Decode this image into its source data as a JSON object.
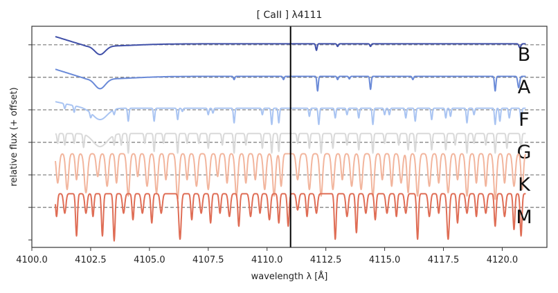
{
  "chart_data": {
    "type": "line",
    "title": "[ CaII ] λ4111",
    "xlabel": "wavelength λ [Å]",
    "ylabel": "relative flux (+ offset)",
    "xlim": [
      4100.0,
      4121.9
    ],
    "ylim": [
      -1.23,
      5.57
    ],
    "xticks": [
      "4100.0",
      "4102.5",
      "4105.0",
      "4107.5",
      "4110.0",
      "4112.5",
      "4115.0",
      "4117.5",
      "4120.0"
    ],
    "yticks": [
      -1,
      0,
      1,
      2,
      3,
      4,
      5
    ],
    "marker_line": {
      "x": 4111.0,
      "color": "#000000"
    },
    "grid": false,
    "range": [
      4101.0,
      4121.0
    ],
    "series": [
      {
        "name": "B",
        "offset": 5,
        "color": "#3f4fa8",
        "continuum": 0.03,
        "ramp": 0.25,
        "lines": [
          [
            4102.9,
            0.26,
            0.22
          ],
          [
            4102.9,
            0.07,
            1.4
          ],
          [
            4112.1,
            0.2,
            0.03
          ],
          [
            4113.0,
            0.08,
            0.03
          ],
          [
            4114.4,
            0.08,
            0.03
          ],
          [
            4120.75,
            0.12,
            0.04
          ]
        ]
      },
      {
        "name": "A",
        "offset": 4,
        "color": "#6a8ad8",
        "continuum": 0.03,
        "ramp": 0.25,
        "lines": [
          [
            4102.9,
            0.3,
            0.22
          ],
          [
            4102.9,
            0.08,
            1.4
          ],
          [
            4108.6,
            0.1,
            0.03
          ],
          [
            4110.7,
            0.1,
            0.03
          ],
          [
            4112.15,
            0.45,
            0.03
          ],
          [
            4113.0,
            0.1,
            0.03
          ],
          [
            4113.5,
            0.08,
            0.03
          ],
          [
            4114.4,
            0.4,
            0.03
          ],
          [
            4116.2,
            0.1,
            0.03
          ],
          [
            4119.7,
            0.45,
            0.03
          ],
          [
            4120.7,
            0.35,
            0.04
          ]
        ]
      },
      {
        "name": "F",
        "offset": 3,
        "color": "#a9c4f2",
        "continuum": 0.05,
        "ramp": 0.2,
        "lines": [
          [
            4102.9,
            0.35,
            0.3
          ],
          [
            4101.4,
            0.15,
            0.03
          ],
          [
            4101.8,
            0.2,
            0.03
          ],
          [
            4102.5,
            0.15,
            0.03
          ],
          [
            4103.5,
            0.15,
            0.03
          ],
          [
            4104.1,
            0.4,
            0.03
          ],
          [
            4105.2,
            0.4,
            0.03
          ],
          [
            4106.2,
            0.35,
            0.03
          ],
          [
            4106.4,
            0.1,
            0.03
          ],
          [
            4107.5,
            0.2,
            0.03
          ],
          [
            4107.7,
            0.15,
            0.03
          ],
          [
            4108.6,
            0.45,
            0.03
          ],
          [
            4109.8,
            0.2,
            0.03
          ],
          [
            4110.2,
            0.5,
            0.03
          ],
          [
            4110.5,
            0.45,
            0.03
          ],
          [
            4111.8,
            0.25,
            0.03
          ],
          [
            4112.2,
            0.5,
            0.03
          ],
          [
            4112.9,
            0.3,
            0.03
          ],
          [
            4113.4,
            0.2,
            0.03
          ],
          [
            4113.9,
            0.3,
            0.03
          ],
          [
            4114.5,
            0.5,
            0.03
          ],
          [
            4115.0,
            0.2,
            0.03
          ],
          [
            4115.2,
            0.2,
            0.03
          ],
          [
            4115.9,
            0.3,
            0.03
          ],
          [
            4116.3,
            0.4,
            0.03
          ],
          [
            4117.0,
            0.35,
            0.03
          ],
          [
            4117.6,
            0.3,
            0.03
          ],
          [
            4117.8,
            0.25,
            0.03
          ],
          [
            4118.5,
            0.45,
            0.03
          ],
          [
            4118.8,
            0.2,
            0.03
          ],
          [
            4119.7,
            0.5,
            0.03
          ],
          [
            4119.9,
            0.4,
            0.03
          ],
          [
            4120.3,
            0.3,
            0.03
          ],
          [
            4120.8,
            0.4,
            0.03
          ]
        ]
      },
      {
        "name": "G",
        "offset": 2,
        "color": "#d9d9d9",
        "continuum": 0.27,
        "ramp": 0,
        "lines": [
          [
            4102.9,
            0.4,
            0.3
          ],
          [
            4101.1,
            0.3,
            0.03
          ],
          [
            4101.4,
            0.35,
            0.03
          ],
          [
            4101.8,
            0.3,
            0.03
          ],
          [
            4102.2,
            0.4,
            0.03
          ],
          [
            4103.5,
            0.3,
            0.03
          ],
          [
            4103.8,
            0.35,
            0.03
          ],
          [
            4104.1,
            0.6,
            0.03
          ],
          [
            4104.8,
            0.3,
            0.03
          ],
          [
            4105.2,
            0.55,
            0.03
          ],
          [
            4105.6,
            0.3,
            0.03
          ],
          [
            4106.2,
            0.6,
            0.03
          ],
          [
            4106.6,
            0.3,
            0.03
          ],
          [
            4107.1,
            0.3,
            0.03
          ],
          [
            4107.5,
            0.45,
            0.03
          ],
          [
            4108.1,
            0.35,
            0.03
          ],
          [
            4108.6,
            0.6,
            0.03
          ],
          [
            4109.1,
            0.35,
            0.03
          ],
          [
            4109.8,
            0.45,
            0.03
          ],
          [
            4110.2,
            0.6,
            0.03
          ],
          [
            4110.5,
            0.55,
            0.03
          ],
          [
            4111.3,
            0.3,
            0.03
          ],
          [
            4111.8,
            0.45,
            0.03
          ],
          [
            4112.3,
            0.6,
            0.03
          ],
          [
            4112.8,
            0.45,
            0.03
          ],
          [
            4113.4,
            0.35,
            0.03
          ],
          [
            4113.9,
            0.5,
            0.03
          ],
          [
            4114.5,
            0.6,
            0.03
          ],
          [
            4115.0,
            0.3,
            0.03
          ],
          [
            4115.6,
            0.35,
            0.03
          ],
          [
            4116.0,
            0.5,
            0.03
          ],
          [
            4116.3,
            0.55,
            0.03
          ],
          [
            4117.0,
            0.5,
            0.03
          ],
          [
            4117.6,
            0.5,
            0.03
          ],
          [
            4118.0,
            0.35,
            0.03
          ],
          [
            4118.5,
            0.6,
            0.03
          ],
          [
            4118.8,
            0.3,
            0.03
          ],
          [
            4119.3,
            0.35,
            0.03
          ],
          [
            4119.7,
            0.6,
            0.03
          ],
          [
            4120.2,
            0.45,
            0.03
          ],
          [
            4120.8,
            0.5,
            0.03
          ]
        ]
      },
      {
        "name": "K",
        "offset": 1,
        "color": "#f2b59d",
        "continuum": 0.65,
        "ramp": 0,
        "lines": [
          [
            4101.1,
            0.9,
            0.06
          ],
          [
            4101.5,
            1.1,
            0.06
          ],
          [
            4101.9,
            0.8,
            0.05
          ],
          [
            4102.3,
            1.2,
            0.07
          ],
          [
            4102.8,
            0.7,
            0.06
          ],
          [
            4103.2,
            1.0,
            0.06
          ],
          [
            4103.6,
            0.9,
            0.05
          ],
          [
            4104.1,
            1.3,
            0.06
          ],
          [
            4104.5,
            0.7,
            0.05
          ],
          [
            4104.9,
            1.0,
            0.06
          ],
          [
            4105.3,
            1.2,
            0.06
          ],
          [
            4105.7,
            0.8,
            0.05
          ],
          [
            4106.2,
            1.4,
            0.06
          ],
          [
            4106.6,
            0.8,
            0.05
          ],
          [
            4107.0,
            1.0,
            0.06
          ],
          [
            4107.5,
            1.1,
            0.06
          ],
          [
            4107.9,
            0.7,
            0.05
          ],
          [
            4108.3,
            0.9,
            0.05
          ],
          [
            4108.7,
            1.3,
            0.06
          ],
          [
            4109.1,
            0.9,
            0.05
          ],
          [
            4109.5,
            0.8,
            0.05
          ],
          [
            4109.9,
            1.1,
            0.06
          ],
          [
            4110.3,
            1.3,
            0.06
          ],
          [
            4110.6,
            1.0,
            0.05
          ],
          [
            4111.3,
            0.8,
            0.06
          ],
          [
            4111.8,
            1.1,
            0.06
          ],
          [
            4112.3,
            1.3,
            0.06
          ],
          [
            4112.8,
            1.1,
            0.06
          ],
          [
            4113.2,
            0.8,
            0.05
          ],
          [
            4113.6,
            1.0,
            0.06
          ],
          [
            4114.0,
            1.1,
            0.06
          ],
          [
            4114.5,
            1.3,
            0.06
          ],
          [
            4114.9,
            0.8,
            0.05
          ],
          [
            4115.3,
            1.0,
            0.05
          ],
          [
            4115.7,
            0.9,
            0.06
          ],
          [
            4116.0,
            1.2,
            0.05
          ],
          [
            4116.4,
            1.3,
            0.06
          ],
          [
            4116.9,
            1.0,
            0.06
          ],
          [
            4117.3,
            0.9,
            0.05
          ],
          [
            4117.7,
            1.2,
            0.06
          ],
          [
            4118.1,
            0.8,
            0.05
          ],
          [
            4118.5,
            1.3,
            0.06
          ],
          [
            4118.9,
            0.9,
            0.05
          ],
          [
            4119.3,
            1.0,
            0.05
          ],
          [
            4119.7,
            1.4,
            0.06
          ],
          [
            4120.1,
            0.9,
            0.05
          ],
          [
            4120.5,
            1.0,
            0.06
          ],
          [
            4120.85,
            1.1,
            0.05
          ]
        ]
      },
      {
        "name": "M",
        "offset": 0,
        "color": "#df6d55",
        "continuum": 0.42,
        "ramp": 0,
        "lines": [
          [
            4101.05,
            0.7,
            0.04
          ],
          [
            4101.4,
            0.6,
            0.05
          ],
          [
            4101.9,
            1.3,
            0.04
          ],
          [
            4102.3,
            0.6,
            0.05
          ],
          [
            4102.6,
            0.7,
            0.04
          ],
          [
            4103.0,
            1.3,
            0.04
          ],
          [
            4103.5,
            1.45,
            0.04
          ],
          [
            4103.9,
            0.6,
            0.05
          ],
          [
            4104.3,
            0.8,
            0.04
          ],
          [
            4104.7,
            0.6,
            0.05
          ],
          [
            4105.1,
            0.9,
            0.04
          ],
          [
            4105.5,
            0.6,
            0.05
          ],
          [
            4106.3,
            1.4,
            0.05
          ],
          [
            4106.8,
            0.8,
            0.04
          ],
          [
            4107.2,
            0.6,
            0.05
          ],
          [
            4107.6,
            0.9,
            0.04
          ],
          [
            4108.0,
            0.6,
            0.04
          ],
          [
            4108.4,
            0.7,
            0.05
          ],
          [
            4108.8,
            1.0,
            0.04
          ],
          [
            4109.3,
            0.7,
            0.05
          ],
          [
            4109.7,
            0.6,
            0.04
          ],
          [
            4110.1,
            0.8,
            0.05
          ],
          [
            4110.5,
            0.9,
            0.04
          ],
          [
            4110.9,
            1.0,
            0.04
          ],
          [
            4111.3,
            0.5,
            0.05
          ],
          [
            4111.7,
            0.7,
            0.04
          ],
          [
            4112.1,
            0.6,
            0.05
          ],
          [
            4112.9,
            1.4,
            0.04
          ],
          [
            4113.4,
            0.7,
            0.05
          ],
          [
            4113.8,
            1.2,
            0.04
          ],
          [
            4114.2,
            0.6,
            0.05
          ],
          [
            4114.6,
            0.8,
            0.04
          ],
          [
            4115.1,
            0.6,
            0.05
          ],
          [
            4115.5,
            0.7,
            0.04
          ],
          [
            4115.9,
            0.6,
            0.05
          ],
          [
            4116.4,
            1.4,
            0.04
          ],
          [
            4116.9,
            0.7,
            0.05
          ],
          [
            4117.3,
            0.6,
            0.04
          ],
          [
            4117.7,
            1.4,
            0.05
          ],
          [
            4118.1,
            0.9,
            0.04
          ],
          [
            4118.5,
            0.6,
            0.05
          ],
          [
            4118.9,
            0.7,
            0.04
          ],
          [
            4119.3,
            0.6,
            0.05
          ],
          [
            4119.7,
            1.0,
            0.04
          ],
          [
            4120.1,
            0.7,
            0.05
          ],
          [
            4120.5,
            1.1,
            0.04
          ],
          [
            4120.8,
            1.3,
            0.04
          ]
        ]
      }
    ]
  }
}
